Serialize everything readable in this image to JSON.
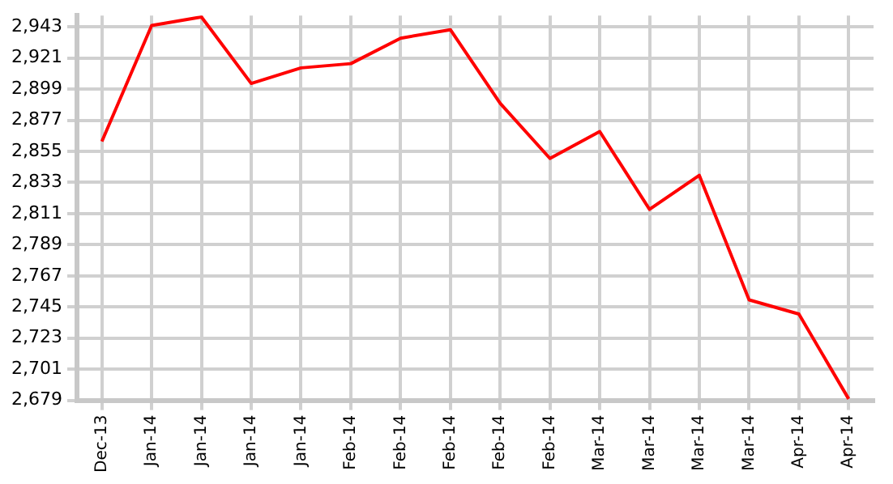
{
  "chart_data": {
    "type": "line",
    "categories": [
      "Dec-13",
      "Jan-14",
      "Jan-14",
      "Jan-14",
      "Jan-14",
      "Feb-14",
      "Feb-14",
      "Feb-14",
      "Feb-14",
      "Feb-14",
      "Mar-14",
      "Mar-14",
      "Mar-14",
      "Mar-14",
      "Apr-14",
      "Apr-14"
    ],
    "series": [
      {
        "color": "#ff0000",
        "values": [
          2862,
          2944,
          2950,
          2903,
          2914,
          2917,
          2935,
          2941,
          2889,
          2850,
          2869,
          2814,
          2838,
          2750,
          2740,
          2680
        ]
      }
    ],
    "ylim": [
      2679,
      2951
    ],
    "yticks": [
      {
        "value": 2679,
        "label": "2,679"
      },
      {
        "value": 2701,
        "label": "2,701"
      },
      {
        "value": 2723,
        "label": "2,723"
      },
      {
        "value": 2745,
        "label": "2,745"
      },
      {
        "value": 2767,
        "label": "2,767"
      },
      {
        "value": 2789,
        "label": "2,789"
      },
      {
        "value": 2811,
        "label": "2,811"
      },
      {
        "value": 2833,
        "label": "2,833"
      },
      {
        "value": 2855,
        "label": "2,855"
      },
      {
        "value": 2877,
        "label": "2,877"
      },
      {
        "value": 2899,
        "label": "2,899"
      },
      {
        "value": 2921,
        "label": "2,921"
      },
      {
        "value": 2943,
        "label": "2,943"
      }
    ],
    "grid": true,
    "legend": false,
    "marker": "none",
    "line_style": "solid"
  }
}
